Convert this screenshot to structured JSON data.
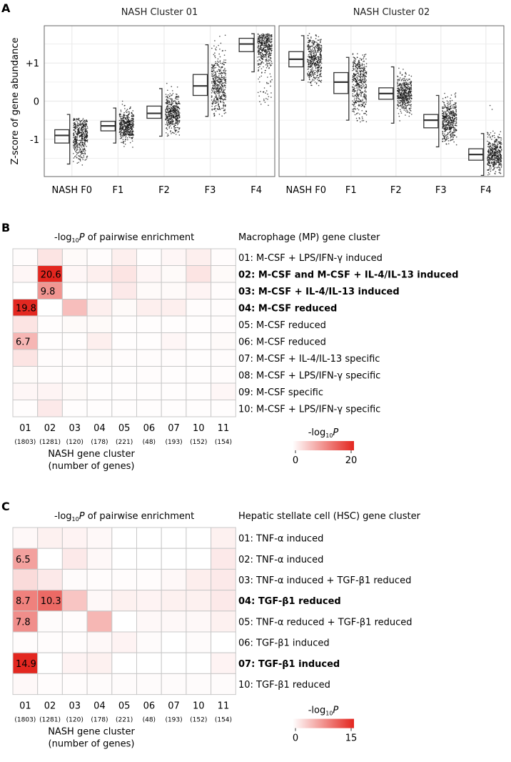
{
  "panels": {
    "a": "A",
    "b": "B",
    "c": "C"
  },
  "chart_data": [
    {
      "type": "box+jitter",
      "title": "NASH Cluster 01",
      "ylabel": "Z-score of gene abundance",
      "yticks": [
        "+1",
        "0",
        "-1"
      ],
      "ytick_values": [
        1,
        0,
        -1
      ],
      "ylim": [
        -1.98,
        1.98
      ],
      "categories": [
        "NASH F0",
        "F1",
        "F2",
        "F3",
        "F4"
      ],
      "boxes": [
        {
          "median": -0.9,
          "q1": -1.1,
          "q3": -0.75,
          "whisker_low": -1.65,
          "whisker_high": -0.35,
          "spread": [
            -1.75,
            -0.45
          ]
        },
        {
          "median": -0.65,
          "q1": -0.78,
          "q3": -0.53,
          "whisker_low": -1.1,
          "whisker_high": -0.18,
          "spread": [
            -1.3,
            0.35
          ]
        },
        {
          "median": -0.32,
          "q1": -0.45,
          "q3": -0.13,
          "whisker_low": -0.92,
          "whisker_high": 0.33,
          "spread": [
            -0.92,
            0.62
          ]
        },
        {
          "median": 0.4,
          "q1": 0.15,
          "q3": 0.7,
          "whisker_low": -0.4,
          "whisker_high": 1.48,
          "spread": [
            -0.4,
            1.75
          ]
        },
        {
          "median": 1.5,
          "q1": 1.3,
          "q3": 1.65,
          "whisker_low": 0.77,
          "whisker_high": 1.77,
          "spread": [
            -0.12,
            1.77
          ]
        }
      ]
    },
    {
      "type": "box+jitter",
      "title": "NASH Cluster 02",
      "ylim": [
        -1.98,
        1.98
      ],
      "categories": [
        "NASH F0",
        "F1",
        "F2",
        "F3",
        "F4"
      ],
      "boxes": [
        {
          "median": 1.1,
          "q1": 0.9,
          "q3": 1.3,
          "whisker_low": 0.55,
          "whisker_high": 1.72,
          "spread": [
            0.4,
            1.78
          ]
        },
        {
          "median": 0.5,
          "q1": 0.2,
          "q3": 0.75,
          "whisker_low": -0.5,
          "whisker_high": 1.15,
          "spread": [
            -0.55,
            1.25
          ]
        },
        {
          "median": 0.2,
          "q1": 0.05,
          "q3": 0.35,
          "whisker_low": -0.58,
          "whisker_high": 0.9,
          "spread": [
            -0.6,
            0.95
          ]
        },
        {
          "median": -0.5,
          "q1": -0.7,
          "q3": -0.35,
          "whisker_low": -1.2,
          "whisker_high": 0.15,
          "spread": [
            -1.3,
            0.25
          ]
        },
        {
          "median": -1.4,
          "q1": -1.55,
          "q3": -1.25,
          "whisker_low": -1.95,
          "whisker_high": -0.85,
          "spread": [
            -1.95,
            0.05
          ]
        }
      ]
    },
    {
      "type": "heatmap",
      "title_prefix": "-log",
      "title_sub": "10",
      "title_italic": "P",
      "title_suffix": " of pairwise enrichment",
      "row_header": "Macrophage (MP) gene cluster",
      "columns": [
        "01",
        "02",
        "03",
        "04",
        "05",
        "06",
        "07",
        "10",
        "11"
      ],
      "column_counts": [
        "(1803)",
        "(1281)",
        "(120)",
        "(178)",
        "(221)",
        "(48)",
        "(193)",
        "(152)",
        "(154)"
      ],
      "xlabel": [
        "NASH gene cluster",
        "(number of genes)"
      ],
      "rows": [
        {
          "label": "01: M-CSF + LPS/IFN-γ induced",
          "bold": false
        },
        {
          "label": "02: M-CSF and M-CSF + IL-4/IL-13 induced",
          "bold": true
        },
        {
          "label": "03: M-CSF + IL-4/IL-13 induced",
          "bold": true
        },
        {
          "label": "04: M-CSF reduced",
          "bold": true
        },
        {
          "label": "05: M-CSF reduced",
          "bold": false
        },
        {
          "label": "06: M-CSF reduced",
          "bold": false
        },
        {
          "label": "07: M-CSF + IL-4/IL-13 specific",
          "bold": false
        },
        {
          "label": "08: M-CSF + LPS/IFN-γ specific",
          "bold": false
        },
        {
          "label": "09: M-CSF specific",
          "bold": false
        },
        {
          "label": "10: M-CSF + LPS/IFN-γ specific",
          "bold": false
        }
      ],
      "values": [
        [
          0.3,
          2.5,
          0.5,
          0.3,
          1.5,
          0.2,
          0.8,
          1.5,
          0.3
        ],
        [
          0.8,
          20.6,
          0.8,
          1.5,
          2.5,
          0.8,
          0.5,
          2.5,
          0.5
        ],
        [
          0,
          9.8,
          0.2,
          0.2,
          2,
          0.5,
          0.5,
          1,
          0.3
        ],
        [
          19.8,
          0,
          6,
          1.5,
          0.5,
          1.5,
          1.5,
          0.3,
          0.3
        ],
        [
          2.5,
          0.2,
          0.5,
          0.5,
          0.2,
          0.2,
          0.2,
          0.2,
          0.3
        ],
        [
          6.7,
          0.2,
          0.2,
          1.5,
          0.2,
          0.2,
          0.8,
          0.2,
          0.5
        ],
        [
          2.5,
          0.3,
          0.3,
          0.5,
          0.3,
          0.3,
          0.3,
          0.2,
          0.3
        ],
        [
          0.5,
          0.3,
          0.3,
          0.2,
          0.2,
          0.3,
          0.2,
          0.2,
          0.3
        ],
        [
          0.8,
          1,
          0.5,
          0.2,
          0.2,
          0.2,
          0.2,
          0.2,
          0.8
        ],
        [
          0.2,
          2,
          0.2,
          0.2,
          0.2,
          0.2,
          0.2,
          0.2,
          0.2
        ]
      ],
      "labels": [
        [
          1,
          1,
          "20.6"
        ],
        [
          2,
          1,
          "9.8"
        ],
        [
          3,
          0,
          "19.8"
        ],
        [
          5,
          0,
          "6.7"
        ]
      ],
      "colorbar": {
        "label_prefix": "-log",
        "label_sub": "10",
        "label_italic": "P",
        "min": 0,
        "max": 20,
        "min_label": "0",
        "max_label": "20",
        "low_color": "#ffffff",
        "high_color": "#e3261f"
      }
    },
    {
      "type": "heatmap",
      "title_prefix": "-log",
      "title_sub": "10",
      "title_italic": "P",
      "title_suffix": " of pairwise enrichment",
      "row_header": "Hepatic stellate cell (HSC) gene cluster",
      "columns": [
        "01",
        "02",
        "03",
        "04",
        "05",
        "06",
        "07",
        "10",
        "11"
      ],
      "column_counts": [
        "(1803)",
        "(1281)",
        "(120)",
        "(178)",
        "(221)",
        "(48)",
        "(193)",
        "(152)",
        "(154)"
      ],
      "xlabel": [
        "NASH gene cluster",
        "(number of genes)"
      ],
      "rows": [
        {
          "label": "01: TNF-α induced",
          "bold": false
        },
        {
          "label": "02: TNF-α induced",
          "bold": false
        },
        {
          "label": "03: TNF-α induced + TGF-β1 reduced",
          "bold": false
        },
        {
          "label": "04: TGF-β1 reduced",
          "bold": true
        },
        {
          "label": "05: TNF-α reduced + TGF-β1 reduced",
          "bold": false
        },
        {
          "label": "06: TGF-β1 induced",
          "bold": false
        },
        {
          "label": "07: TGF-β1 induced",
          "bold": true
        },
        {
          "label": "10: TGF-β1 reduced",
          "bold": false
        }
      ],
      "values": [
        [
          0.5,
          1,
          0.8,
          0.5,
          0,
          0,
          0,
          0,
          1
        ],
        [
          6.5,
          0,
          1.5,
          0.5,
          0,
          0,
          0,
          0,
          1.5
        ],
        [
          2.5,
          1.5,
          0.3,
          0.2,
          0.2,
          0.2,
          0.5,
          1.2,
          1.5
        ],
        [
          8.7,
          10.3,
          4,
          0.5,
          1,
          0.8,
          1,
          1,
          1.5
        ],
        [
          7.8,
          0.3,
          0.2,
          5,
          0,
          0.5,
          0.5,
          0.5,
          1
        ],
        [
          0.2,
          0.2,
          0.2,
          0.5,
          0.8,
          0.3,
          0,
          0.3,
          0
        ],
        [
          14.9,
          0,
          0.8,
          1,
          0,
          0,
          0,
          0,
          0.8
        ],
        [
          0.5,
          0.2,
          0.2,
          0.3,
          0.3,
          0.3,
          0.3,
          0.3,
          0.3
        ]
      ],
      "labels": [
        [
          1,
          0,
          "6.5"
        ],
        [
          3,
          0,
          "8.7"
        ],
        [
          3,
          1,
          "10.3"
        ],
        [
          4,
          0,
          "7.8"
        ],
        [
          6,
          0,
          "14.9"
        ]
      ],
      "colorbar": {
        "label_prefix": "-log",
        "label_sub": "10",
        "label_italic": "P",
        "min": 0,
        "max": 15,
        "min_label": "0",
        "max_label": "15",
        "low_color": "#ffffff",
        "high_color": "#e3261f"
      }
    }
  ]
}
